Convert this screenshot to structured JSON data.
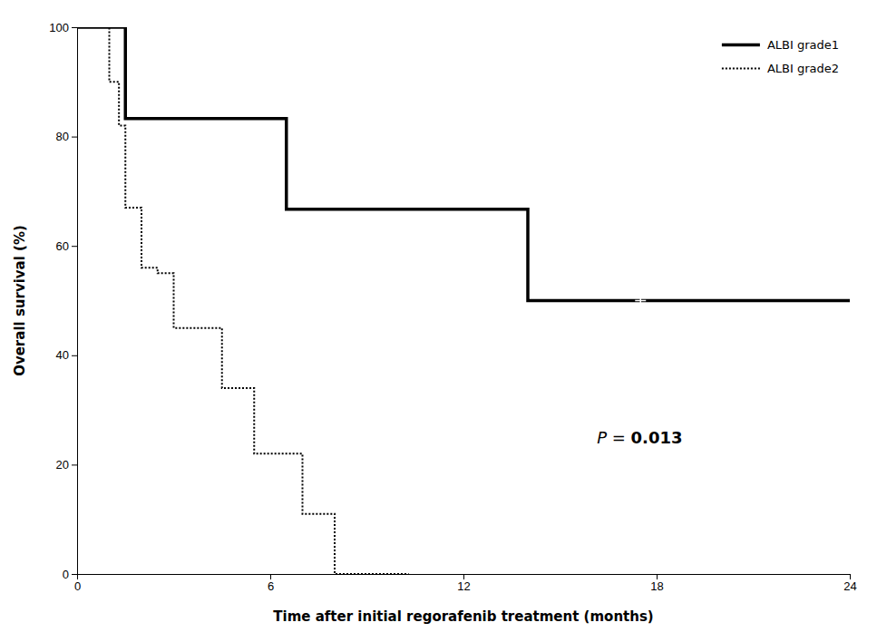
{
  "chart_data": {
    "type": "step",
    "xlabel": "Time after initial regorafenib treatment (months)",
    "ylabel": "Overall survival (%)",
    "xlim": [
      0,
      24
    ],
    "ylim": [
      0,
      100
    ],
    "xticks": [
      0,
      6,
      12,
      18,
      24
    ],
    "yticks": [
      0,
      20,
      40,
      60,
      80,
      100
    ],
    "grid": false,
    "legend": "upper right",
    "series": [
      {
        "name": "ALBI grade1",
        "color": "#000000",
        "line_style": "solid",
        "x": [
          0,
          1.5,
          6.5,
          14,
          24
        ],
        "values": [
          100,
          83.3,
          66.7,
          50,
          50
        ],
        "censored": {
          "x": [
            17.5
          ],
          "values": [
            50
          ],
          "marker": "plus",
          "color": "#ffffff"
        }
      },
      {
        "name": "ALBI grade2",
        "color": "#000000",
        "line_style": "dotted",
        "x": [
          0,
          1.0,
          1.3,
          1.5,
          2.0,
          2.5,
          3.0,
          3.5,
          4.5,
          5.5,
          6.5,
          7.0,
          7.5,
          8.0,
          8.5,
          9.5,
          10.3
        ],
        "values": [
          100,
          90,
          82,
          67,
          56,
          55,
          45,
          45,
          34,
          22,
          22,
          11,
          11,
          0,
          0,
          0,
          0
        ]
      }
    ],
    "annotations": [
      {
        "text": "P = ",
        "x": 17.2,
        "y": 25
      },
      {
        "text": "0.013",
        "x": 17.2,
        "y": 25
      }
    ]
  }
}
